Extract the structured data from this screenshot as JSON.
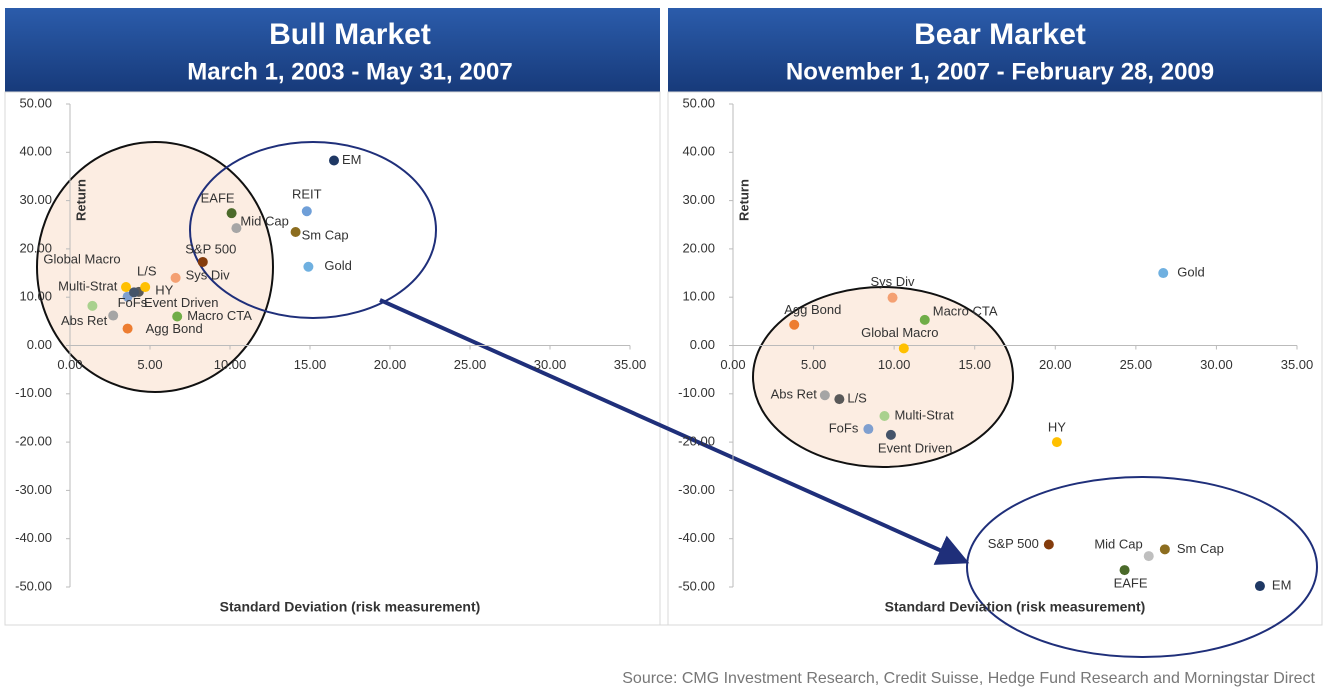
{
  "chart_data": [
    {
      "type": "scatter",
      "title": "Bull Market",
      "subtitle": "March 1, 2003 - May 31, 2007",
      "xlabel": "Standard Deviation (risk measurement)",
      "ylabel": "Return",
      "xlim": [
        0,
        35
      ],
      "ylim": [
        -50,
        50
      ],
      "xticks": [
        {
          "value": 0,
          "label": "0.00"
        },
        {
          "value": 5,
          "label": "5.00"
        },
        {
          "value": 10,
          "label": "10.00"
        },
        {
          "value": 15,
          "label": "15.00"
        },
        {
          "value": 20,
          "label": "20.00"
        },
        {
          "value": 25,
          "label": "25.00"
        },
        {
          "value": 30,
          "label": "30.00"
        },
        {
          "value": 35,
          "label": "35.00"
        }
      ],
      "yticks": [
        {
          "value": 50,
          "label": "50.00"
        },
        {
          "value": 40,
          "label": "40.00"
        },
        {
          "value": 30,
          "label": "30.00"
        },
        {
          "value": 20,
          "label": "20.00"
        },
        {
          "value": 10,
          "label": "10.00"
        },
        {
          "value": 0,
          "label": "0.00"
        },
        {
          "value": -10,
          "label": "-10.00"
        },
        {
          "value": -20,
          "label": "-20.00"
        },
        {
          "value": -30,
          "label": "-30.00"
        },
        {
          "value": -40,
          "label": "-40.00"
        },
        {
          "value": -50,
          "label": "-50.00"
        }
      ],
      "series": [
        {
          "name": "EM",
          "color": "#1f3864",
          "x": [
            16.5
          ],
          "values": [
            38.3
          ]
        },
        {
          "name": "REIT",
          "color": "#6f9fd8",
          "x": [
            14.8
          ],
          "values": [
            27.8
          ]
        },
        {
          "name": "EAFE",
          "color": "#4b6a2a",
          "x": [
            10.1
          ],
          "values": [
            27.4
          ]
        },
        {
          "name": "Mid Cap",
          "color": "#a6a6a6",
          "x": [
            10.4
          ],
          "values": [
            24.3
          ]
        },
        {
          "name": "Sm Cap",
          "color": "#8c6d1f",
          "x": [
            14.1
          ],
          "values": [
            23.5
          ]
        },
        {
          "name": "S&P 500",
          "color": "#843c0c",
          "x": [
            8.3
          ],
          "values": [
            17.3
          ]
        },
        {
          "name": "Gold",
          "color": "#6fb0e0",
          "x": [
            14.9
          ],
          "values": [
            16.3
          ]
        },
        {
          "name": "Sys Div",
          "color": "#f4a072",
          "x": [
            6.6
          ],
          "values": [
            14.0
          ]
        },
        {
          "name": "L/S",
          "color": "#595959",
          "x": [
            4.3
          ],
          "values": [
            11.1
          ]
        },
        {
          "name": "Global Macro",
          "color": "#ffc000",
          "x": [
            3.5
          ],
          "values": [
            12.1
          ]
        },
        {
          "name": "HY",
          "color": "#ffc000",
          "x": [
            4.7
          ],
          "values": [
            12.1
          ]
        },
        {
          "name": "Multi-Strat",
          "color": "#a9d18e",
          "x": [
            1.4
          ],
          "values": [
            8.2
          ]
        },
        {
          "name": "FoFs",
          "color": "#7f9fcf",
          "x": [
            3.6
          ],
          "values": [
            10.1
          ]
        },
        {
          "name": "Event Driven",
          "color": "#44546a",
          "x": [
            4.0
          ],
          "values": [
            11.0
          ]
        },
        {
          "name": "Abs Ret",
          "color": "#a5a5a5",
          "x": [
            2.7
          ],
          "values": [
            6.2
          ]
        },
        {
          "name": "Agg Bond",
          "color": "#ed7d31",
          "x": [
            3.6
          ],
          "values": [
            3.5
          ]
        },
        {
          "name": "Macro CTA",
          "color": "#70ad47",
          "x": [
            6.7
          ],
          "values": [
            6.0
          ]
        }
      ]
    },
    {
      "type": "scatter",
      "title": "Bear Market",
      "subtitle": "November 1, 2007 - February 28, 2009",
      "xlabel": "Standard Deviation (risk measurement)",
      "ylabel": "Return",
      "xlim": [
        0,
        35
      ],
      "ylim": [
        -50,
        50
      ],
      "xticks": [
        {
          "value": 0,
          "label": "0.00"
        },
        {
          "value": 5,
          "label": "5.00"
        },
        {
          "value": 10,
          "label": "10.00"
        },
        {
          "value": 15,
          "label": "15.00"
        },
        {
          "value": 20,
          "label": "20.00"
        },
        {
          "value": 25,
          "label": "25.00"
        },
        {
          "value": 30,
          "label": "30.00"
        },
        {
          "value": 35,
          "label": "35.00"
        }
      ],
      "yticks": [
        {
          "value": 50,
          "label": "50.00"
        },
        {
          "value": 40,
          "label": "40.00"
        },
        {
          "value": 30,
          "label": "30.00"
        },
        {
          "value": 20,
          "label": "20.00"
        },
        {
          "value": 10,
          "label": "10.00"
        },
        {
          "value": 0,
          "label": "0.00"
        },
        {
          "value": -10,
          "label": "-10.00"
        },
        {
          "value": -20,
          "label": "-20.00"
        },
        {
          "value": -30,
          "label": "-30.00"
        },
        {
          "value": -40,
          "label": "-40.00"
        },
        {
          "value": -50,
          "label": "-50.00"
        }
      ],
      "series": [
        {
          "name": "Gold",
          "color": "#6fb0e0",
          "x": [
            26.7
          ],
          "values": [
            15.0
          ]
        },
        {
          "name": "Sys Div",
          "color": "#f4a072",
          "x": [
            9.9
          ],
          "values": [
            9.9
          ]
        },
        {
          "name": "Agg Bond",
          "color": "#ed7d31",
          "x": [
            3.8
          ],
          "values": [
            4.3
          ]
        },
        {
          "name": "Macro CTA",
          "color": "#70ad47",
          "x": [
            11.9
          ],
          "values": [
            5.3
          ]
        },
        {
          "name": "Global Macro",
          "color": "#ffc000",
          "x": [
            10.6
          ],
          "values": [
            -0.6
          ]
        },
        {
          "name": "Abs Ret",
          "color": "#a5a5a5",
          "x": [
            5.7
          ],
          "values": [
            -10.3
          ]
        },
        {
          "name": "L/S",
          "color": "#595959",
          "x": [
            6.6
          ],
          "values": [
            -11.1
          ]
        },
        {
          "name": "Multi-Strat",
          "color": "#a9d18e",
          "x": [
            9.4
          ],
          "values": [
            -14.6
          ]
        },
        {
          "name": "FoFs",
          "color": "#7f9fcf",
          "x": [
            8.4
          ],
          "values": [
            -17.3
          ]
        },
        {
          "name": "Event Driven",
          "color": "#44546a",
          "x": [
            9.8
          ],
          "values": [
            -18.5
          ]
        },
        {
          "name": "HY",
          "color": "#ffc000",
          "x": [
            20.1
          ],
          "values": [
            -20.0
          ]
        },
        {
          "name": "S&P 500",
          "color": "#843c0c",
          "x": [
            19.6
          ],
          "values": [
            -41.2
          ]
        },
        {
          "name": "Mid Cap",
          "color": "#bfbfbf",
          "x": [
            25.8
          ],
          "values": [
            -43.6
          ]
        },
        {
          "name": "Sm Cap",
          "color": "#8c6d1f",
          "x": [
            26.8
          ],
          "values": [
            -42.2
          ]
        },
        {
          "name": "EAFE",
          "color": "#4b6a2a",
          "x": [
            24.3
          ],
          "values": [
            -46.5
          ]
        },
        {
          "name": "EM",
          "color": "#1f3864",
          "x": [
            32.7
          ],
          "values": [
            -49.8
          ]
        }
      ]
    }
  ],
  "source": "Source: CMG Investment Research, Credit Suisse, Hedge Fund Research and Morningstar Direct"
}
